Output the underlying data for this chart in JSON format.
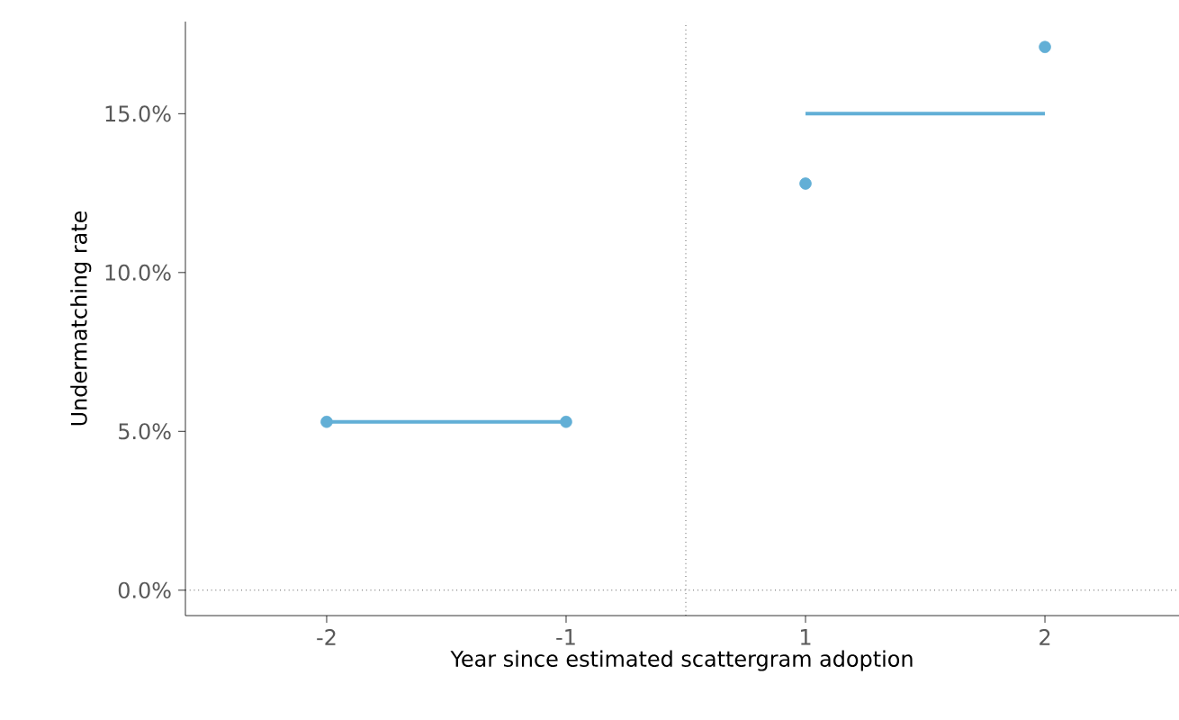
{
  "chart_data": {
    "type": "scatter",
    "xlabel": "Year since estimated scattergram adoption",
    "ylabel": "Undermatching rate",
    "categories": [
      "-2",
      "-1",
      "1",
      "2"
    ],
    "series": [
      {
        "color": "#62afd6",
        "values": [
          5.3,
          5.3,
          12.8,
          17.1
        ],
        "marker": "circle"
      },
      {
        "type": "line",
        "color": "#62afd6",
        "values": [
          5.3,
          5.3,
          null,
          null
        ],
        "marker": "none"
      },
      {
        "type": "line",
        "color": "#62afd6",
        "values": [
          null,
          null,
          15.0,
          15.0
        ],
        "marker": "none"
      }
    ],
    "ylim": [
      -0.8,
      17.9
    ],
    "yticks": [
      {
        "value": 0,
        "label": "0.0%"
      },
      {
        "value": 5,
        "label": "5.0%"
      },
      {
        "value": 10,
        "label": "10.0%"
      },
      {
        "value": 15,
        "label": "15.0%"
      }
    ],
    "ref_lines": [
      {
        "axis": "y",
        "value": 0,
        "line_style": "dotted"
      }
    ],
    "grid": false
  }
}
